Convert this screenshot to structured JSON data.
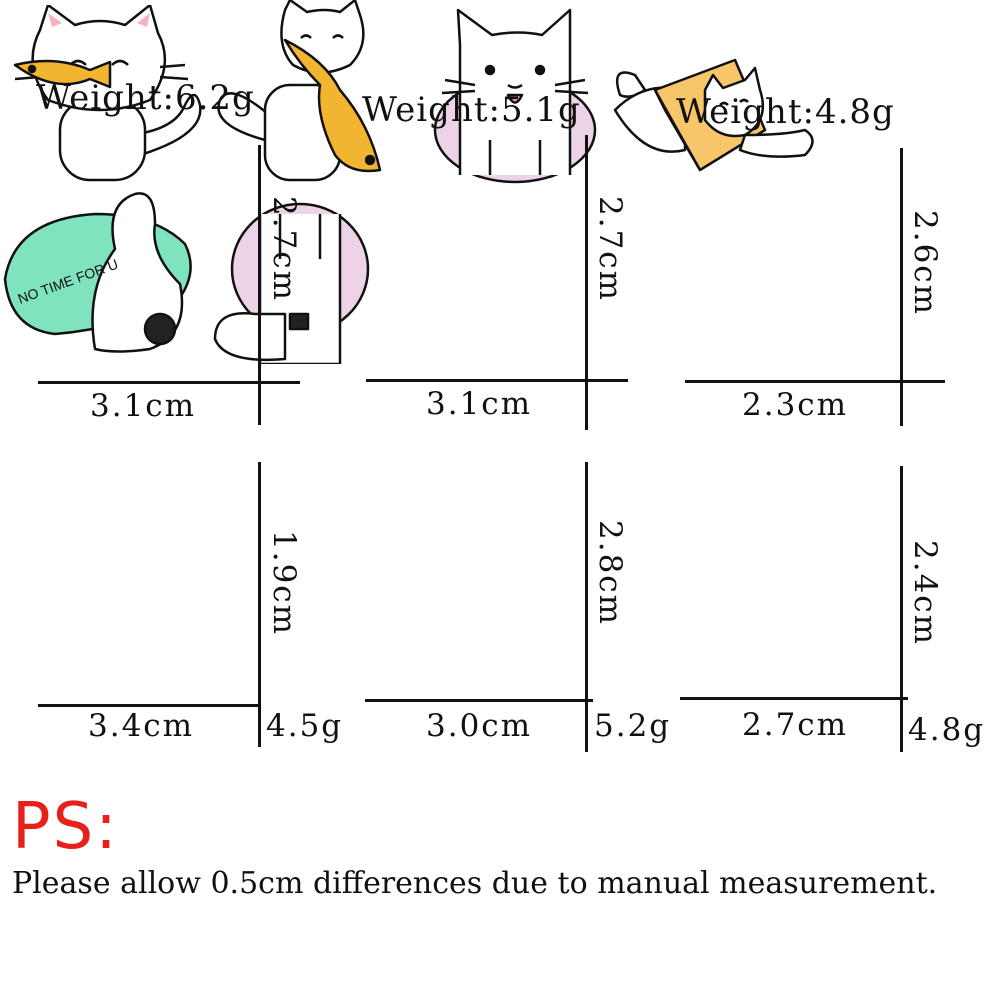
{
  "pins": [
    {
      "name": "cat-with-small-fish",
      "weight_title": "Weight:6.2g",
      "height": "2.7cm",
      "width": "3.1cm",
      "side_weight": ""
    },
    {
      "name": "cat-biting-big-fish",
      "weight_title": "Weight:5.1g",
      "height": "2.7cm",
      "width": "3.1cm",
      "side_weight": ""
    },
    {
      "name": "cat-face-peeking",
      "weight_title": "Weight:4.8g",
      "height": "2.6cm",
      "width": "2.3cm",
      "side_weight": ""
    },
    {
      "name": "cat-in-box",
      "weight_title": "",
      "height": "1.9cm",
      "width": "3.4cm",
      "side_weight": "4.5g"
    },
    {
      "name": "cat-butt-no-time",
      "weight_title": "",
      "height": "2.8cm",
      "width": "3.0cm",
      "side_weight": "5.2g",
      "bag_text": "NO TIME FOR U"
    },
    {
      "name": "cat-legs-hole",
      "weight_title": "",
      "height": "2.4cm",
      "width": "2.7cm",
      "side_weight": "4.8g"
    }
  ],
  "ps": {
    "title": "PS:",
    "note": "Please allow 0.5cm differences due to manual measurement."
  },
  "colors": {
    "accent_red": "#e8201a",
    "fish_yellow": "#f2b530",
    "box_yellow": "#f7c66b",
    "bag_green": "#7fe3bd",
    "hole_pink": "#ecd3e6"
  }
}
